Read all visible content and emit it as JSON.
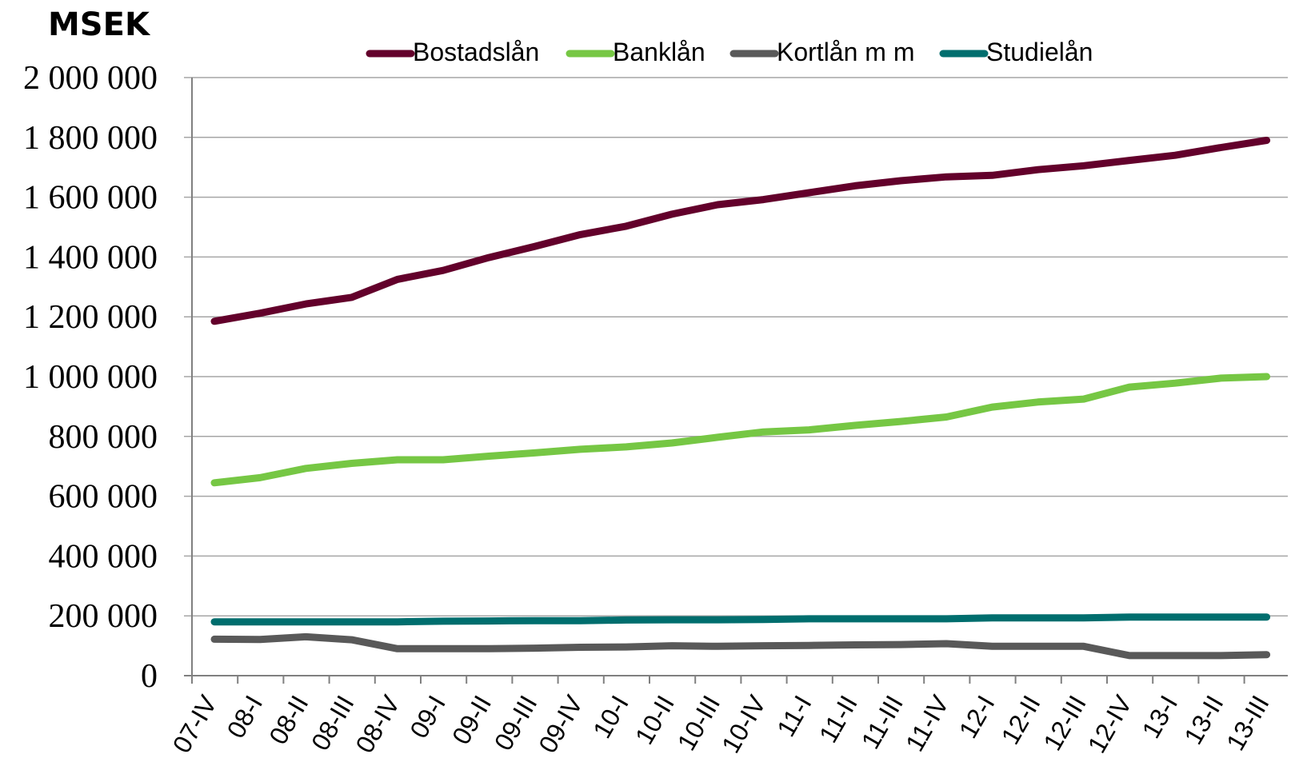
{
  "chart_data": {
    "type": "line",
    "unit_label": "MSEK",
    "categories": [
      "07-IV",
      "08-I",
      "08-II",
      "08-III",
      "08-IV",
      "09-I",
      "09-II",
      "09-III",
      "09-IV",
      "10-I",
      "10-II",
      "10-III",
      "10-IV",
      "11-I",
      "11-II",
      "11-III",
      "11-IV",
      "12-I",
      "12-II",
      "12-III",
      "12-IV",
      "13-I",
      "13-II",
      "13-III"
    ],
    "ylim": [
      0,
      2000000
    ],
    "yticks": [
      0,
      200000,
      400000,
      600000,
      800000,
      1000000,
      1200000,
      1400000,
      1600000,
      1800000,
      2000000
    ],
    "ytick_labels": [
      "0",
      "200 000",
      "400 000",
      "600 000",
      "800 000",
      "1 000 000",
      "1 200 000",
      "1 400 000",
      "1 600 000",
      "1 800 000",
      "2 000 000"
    ],
    "grid": true,
    "legend_position": "top",
    "series": [
      {
        "name": "Bostadslån",
        "color": "#63002b",
        "values": [
          1185000,
          1212000,
          1243000,
          1265000,
          1325000,
          1355000,
          1398000,
          1435000,
          1475000,
          1503000,
          1543000,
          1575000,
          1592000,
          1615000,
          1638000,
          1655000,
          1668000,
          1673000,
          1692000,
          1705000,
          1723000,
          1740000,
          1766000,
          1790000
        ]
      },
      {
        "name": "Banklån",
        "color": "#76c744",
        "values": [
          645000,
          662000,
          693000,
          710000,
          722000,
          722000,
          734000,
          745000,
          757000,
          765000,
          778000,
          797000,
          815000,
          822000,
          837000,
          850000,
          865000,
          898000,
          915000,
          925000,
          965000,
          978000,
          995000,
          1000000
        ]
      },
      {
        "name": "Kortlån m m",
        "color": "#595959",
        "values": [
          122000,
          121000,
          130000,
          120000,
          90000,
          90000,
          90000,
          92000,
          95000,
          96000,
          100000,
          98000,
          100000,
          101000,
          103000,
          104000,
          107000,
          98000,
          98000,
          98000,
          67000,
          67000,
          67000,
          70000
        ]
      },
      {
        "name": "Studielån",
        "color": "#006e6e",
        "values": [
          180000,
          180000,
          180000,
          180000,
          180000,
          182000,
          183000,
          184000,
          184000,
          186000,
          187000,
          187000,
          188000,
          190000,
          190000,
          190000,
          190000,
          193000,
          193000,
          193000,
          196000,
          196000,
          196000,
          196000
        ]
      }
    ]
  }
}
